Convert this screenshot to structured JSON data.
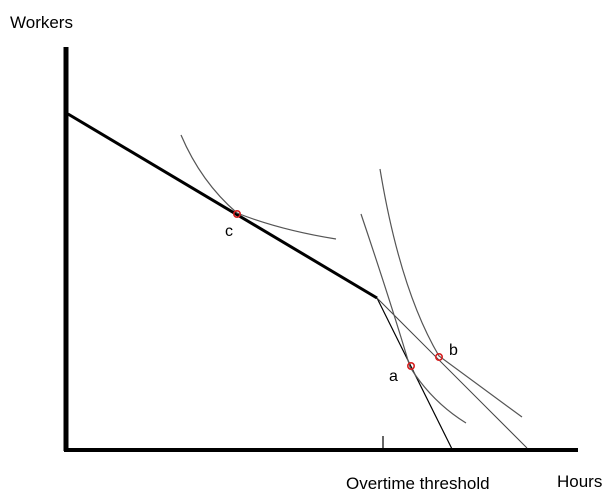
{
  "diagram": {
    "y_axis_label": "Workers",
    "x_axis_label": "Hours",
    "threshold_label": "Overtime threshold",
    "points": [
      {
        "id": "c",
        "label": "c"
      },
      {
        "id": "a",
        "label": "a"
      },
      {
        "id": "b",
        "label": "b"
      }
    ],
    "colors": {
      "ink": "#000000",
      "curve": "#555555",
      "point": "#d62020"
    }
  }
}
